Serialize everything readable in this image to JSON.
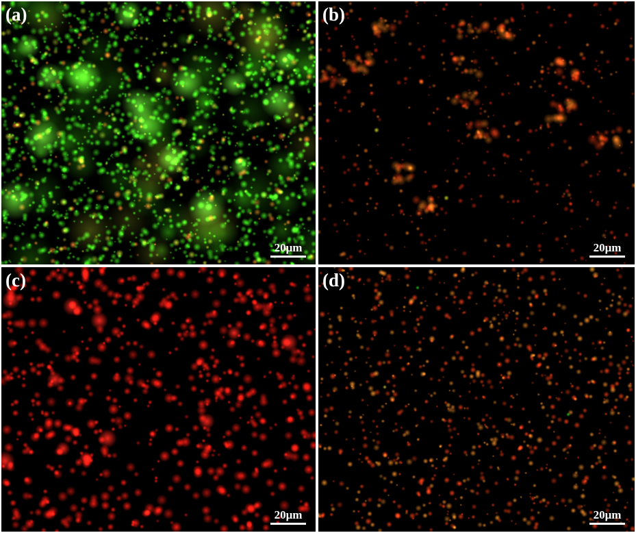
{
  "panels": [
    {
      "id": "a",
      "label": "(a)",
      "scale_label": "20μm",
      "stain": "predominantly green with some yellow/orange clusters"
    },
    {
      "id": "b",
      "label": "(b)",
      "scale_label": "20μm",
      "stain": "sparse red/orange clusters"
    },
    {
      "id": "c",
      "label": "(c)",
      "scale_label": "20μm",
      "stain": "scattered red dots"
    },
    {
      "id": "d",
      "label": "(d)",
      "scale_label": "20μm",
      "stain": "fine sparse red/orange dots"
    }
  ],
  "colors": {
    "background": "#000000",
    "separator": "#ffffff",
    "text": "#ffffff",
    "green": "#4cff2a",
    "yellow": "#c8d830",
    "red": "#ff2a1a",
    "orange": "#ff7a22"
  }
}
